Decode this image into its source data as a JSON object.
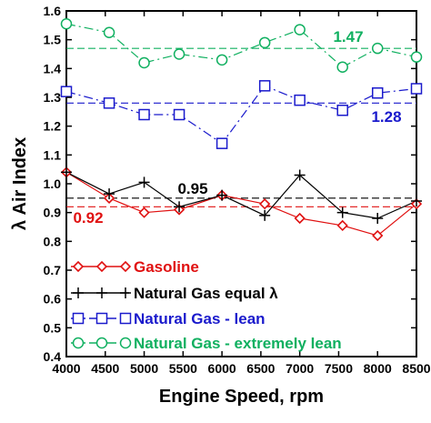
{
  "chart_data": {
    "type": "line",
    "xlabel": "Engine Speed, rpm",
    "ylabel": "λ Air Index",
    "xlim": [
      4000,
      8500
    ],
    "ylim": [
      0.4,
      1.6
    ],
    "xticks": [
      "4000",
      "4500",
      "5000",
      "5500",
      "6000",
      "6500",
      "7000",
      "7500",
      "8000",
      "8500"
    ],
    "yticks": [
      "0.4",
      "0.5",
      "0.6",
      "0.7",
      "0.8",
      "0.9",
      "1.0",
      "1.1",
      "1.2",
      "1.3",
      "1.4",
      "1.5",
      "1.6"
    ],
    "grid": false,
    "legend_position": "bottom-left",
    "series": [
      {
        "name": "Gasoline",
        "color": "#e01010",
        "marker": "diamond",
        "line": "solid",
        "x": [
          4000,
          4550,
          5000,
          5450,
          6000,
          6550,
          7000,
          7550,
          8000,
          8500
        ],
        "y": [
          1.04,
          0.95,
          0.9,
          0.91,
          0.96,
          0.93,
          0.88,
          0.855,
          0.82,
          0.93
        ]
      },
      {
        "name": "Natural Gas equal λ",
        "color": "#000000",
        "marker": "plus",
        "line": "solid",
        "x": [
          4000,
          4550,
          5000,
          5450,
          6000,
          6550,
          7000,
          7550,
          8000,
          8500
        ],
        "y": [
          1.04,
          0.965,
          1.005,
          0.92,
          0.96,
          0.89,
          1.03,
          0.9,
          0.88,
          0.94
        ]
      },
      {
        "name": "Natural Gas - lean",
        "color": "#1a1acc",
        "marker": "square",
        "line": "dashdot",
        "x": [
          4000,
          4550,
          5000,
          5450,
          6000,
          6550,
          7000,
          7550,
          8000,
          8500
        ],
        "y": [
          1.32,
          1.28,
          1.24,
          1.24,
          1.14,
          1.34,
          1.29,
          1.255,
          1.315,
          1.33
        ]
      },
      {
        "name": "Natural Gas - extremely lean",
        "color": "#10b060",
        "marker": "circle",
        "line": "dashdot",
        "x": [
          4000,
          4550,
          5000,
          5450,
          6000,
          6550,
          7000,
          7550,
          8000,
          8500
        ],
        "y": [
          1.555,
          1.525,
          1.42,
          1.45,
          1.43,
          1.49,
          1.535,
          1.405,
          1.47,
          1.44
        ]
      }
    ],
    "reference_lines": [
      {
        "value": 1.47,
        "label": "1.47",
        "color": "#10b060"
      },
      {
        "value": 1.28,
        "label": "1.28",
        "color": "#1a1acc"
      },
      {
        "value": 0.95,
        "label": "0.95",
        "color": "#000000"
      },
      {
        "value": 0.92,
        "label": "0.92",
        "color": "#e01010"
      }
    ]
  }
}
